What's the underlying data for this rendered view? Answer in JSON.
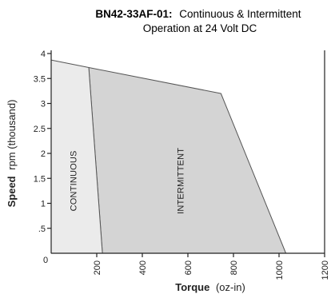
{
  "chart_data": {
    "type": "area",
    "title": {
      "model": "BN42-33AF-01:",
      "rest_line1": "Continuous & Intermittent",
      "line2": "Operation at 24 Volt DC"
    },
    "xlabel": {
      "bold": "Torque",
      "unit": "(oz-in)"
    },
    "ylabel": {
      "bold": "Speed",
      "unit": "rpm (thousand)"
    },
    "xlim": [
      0,
      1200
    ],
    "ylim": [
      0,
      4
    ],
    "x_ticks": [
      {
        "value": 200,
        "label": "200"
      },
      {
        "value": 400,
        "label": "400"
      },
      {
        "value": 600,
        "label": "600"
      },
      {
        "value": 800,
        "label": "800"
      },
      {
        "value": 1000,
        "label": "1000"
      },
      {
        "value": 1200,
        "label": "1200"
      }
    ],
    "x_origin_label": "0",
    "y_ticks": [
      {
        "value": 0.5,
        "label": ".5"
      },
      {
        "value": 1,
        "label": "1"
      },
      {
        "value": 1.5,
        "label": "1.5"
      },
      {
        "value": 2,
        "label": "2"
      },
      {
        "value": 2.5,
        "label": "2.5"
      },
      {
        "value": 3,
        "label": "3"
      },
      {
        "value": 3.5,
        "label": "3.5"
      },
      {
        "value": 4,
        "label": "4"
      }
    ],
    "regions": [
      {
        "name": "CONTINUOUS",
        "label": "CONTINUOUS",
        "fill": "#ebebeb",
        "points": [
          [
            0,
            0
          ],
          [
            0,
            3.87
          ],
          [
            165,
            3.72
          ],
          [
            225,
            0
          ]
        ],
        "label_at": [
          110,
          1.45
        ]
      },
      {
        "name": "INTERMITTENT",
        "label": "INTERMITTENT",
        "fill": "#d4d4d4",
        "points": [
          [
            165,
            3.72
          ],
          [
            745,
            3.2
          ],
          [
            1030,
            0
          ],
          [
            225,
            0
          ]
        ],
        "label_at": [
          580,
          1.45
        ]
      }
    ],
    "colors": {
      "axis": "#222222",
      "outline": "#555555"
    }
  }
}
